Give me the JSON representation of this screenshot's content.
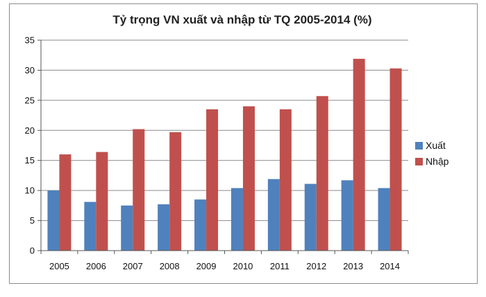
{
  "chart_data": {
    "type": "bar",
    "title": "Tỷ trọng VN xuất và nhập từ TQ 2005-2014 (%)",
    "xlabel": "",
    "ylabel": "",
    "categories": [
      "2005",
      "2006",
      "2007",
      "2008",
      "2009",
      "2010",
      "2011",
      "2012",
      "2013",
      "2014"
    ],
    "series": [
      {
        "name": "Xuất",
        "color": "#4f81bd",
        "values": [
          10.0,
          8.1,
          7.5,
          7.7,
          8.5,
          10.4,
          11.9,
          11.1,
          11.7,
          10.4
        ]
      },
      {
        "name": "Nhập",
        "color": "#c0504d",
        "values": [
          16.0,
          16.4,
          20.2,
          19.7,
          23.5,
          24.0,
          23.5,
          25.7,
          31.9,
          30.3
        ]
      }
    ],
    "ylim": [
      0,
      35
    ],
    "yticks": [
      "0",
      "5",
      "10",
      "15",
      "20",
      "25",
      "30",
      "35"
    ],
    "grid": true,
    "legend": "right"
  }
}
